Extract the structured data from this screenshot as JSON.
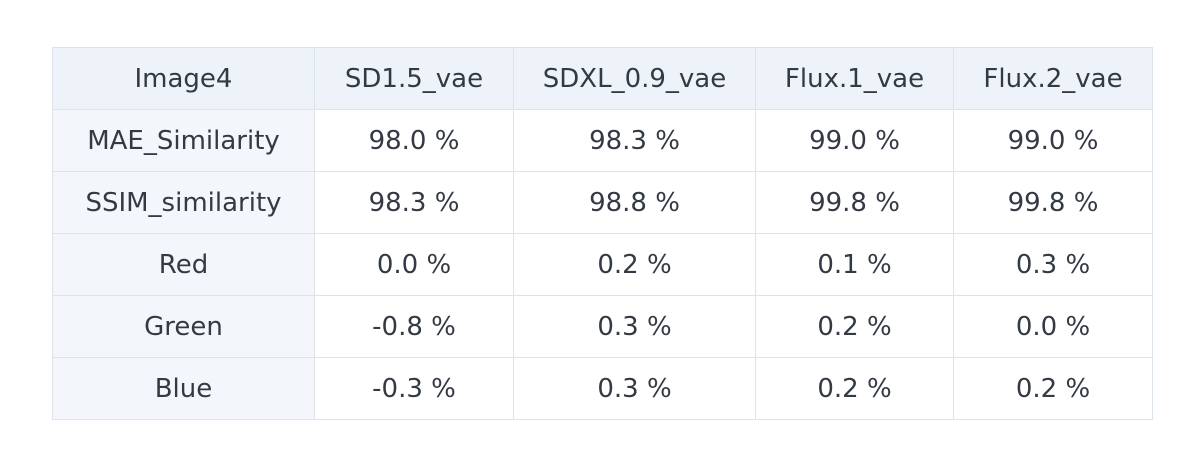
{
  "table": {
    "header": [
      "Image4",
      "SD1.5_vae",
      "SDXL_0.9_vae",
      "Flux.1_vae",
      "Flux.2_vae"
    ],
    "rows": [
      [
        "MAE_Similarity",
        "98.0 %",
        "98.3 %",
        "99.0 %",
        "99.0 %"
      ],
      [
        "SSIM_similarity",
        "98.3 %",
        "98.8 %",
        "99.8 %",
        "99.8 %"
      ],
      [
        "Red",
        "0.0 %",
        "0.2 %",
        "0.1 %",
        "0.3 %"
      ],
      [
        "Green",
        "-0.8 %",
        "0.3 %",
        "0.2 %",
        "0.0 %"
      ],
      [
        "Blue",
        "-0.3 %",
        "0.3 %",
        "0.2 %",
        "0.2 %"
      ]
    ]
  }
}
